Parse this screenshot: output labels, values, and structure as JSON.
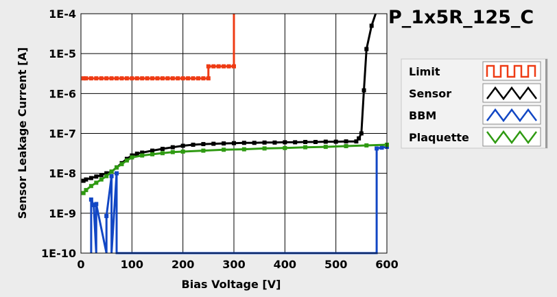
{
  "chart_data": {
    "type": "line",
    "title": "P_1x5R_125_C",
    "xlabel": "Bias Voltage [V]",
    "ylabel": "Sensor Leakage Current [A]",
    "xlim": [
      0,
      600
    ],
    "ylim": [
      1e-10,
      0.0001
    ],
    "y_scale": "log",
    "grid": true,
    "legend_position": "right",
    "x_ticks": [
      "0",
      "100",
      "200",
      "300",
      "400",
      "500",
      "600"
    ],
    "y_ticks": [
      "1E-10",
      "1E-9",
      "1E-8",
      "1E-7",
      "1E-6",
      "1E-5",
      "1E-4"
    ],
    "colors": {
      "Limit": "#ee3b14",
      "Sensor": "#000000",
      "BBM": "#1247c4",
      "Plaquette": "#2f9a12"
    },
    "series": [
      {
        "name": "Limit",
        "x": [
          5,
          10,
          20,
          30,
          40,
          50,
          60,
          70,
          80,
          90,
          100,
          110,
          120,
          130,
          140,
          150,
          160,
          170,
          180,
          190,
          200,
          210,
          220,
          230,
          240,
          250,
          250,
          260,
          270,
          280,
          290,
          300,
          300
        ],
        "y": [
          2.4e-06,
          2.4e-06,
          2.4e-06,
          2.4e-06,
          2.4e-06,
          2.4e-06,
          2.4e-06,
          2.4e-06,
          2.4e-06,
          2.4e-06,
          2.4e-06,
          2.4e-06,
          2.4e-06,
          2.4e-06,
          2.4e-06,
          2.4e-06,
          2.4e-06,
          2.4e-06,
          2.4e-06,
          2.4e-06,
          2.4e-06,
          2.4e-06,
          2.4e-06,
          2.4e-06,
          2.4e-06,
          2.4e-06,
          4.8e-06,
          4.8e-06,
          4.8e-06,
          4.8e-06,
          4.8e-06,
          4.8e-06,
          0.0001
        ]
      },
      {
        "name": "Sensor",
        "x": [
          5,
          10,
          20,
          30,
          40,
          50,
          60,
          70,
          80,
          90,
          100,
          110,
          120,
          140,
          160,
          180,
          200,
          220,
          240,
          260,
          280,
          300,
          320,
          340,
          360,
          380,
          400,
          420,
          440,
          460,
          480,
          500,
          520,
          540,
          545,
          550,
          555,
          560,
          570,
          578
        ],
        "y": [
          6.5e-09,
          7e-09,
          7.6e-09,
          8.3e-09,
          9e-09,
          1e-08,
          1.1e-08,
          1.4e-08,
          1.8e-08,
          2.3e-08,
          2.8e-08,
          3.1e-08,
          3.3e-08,
          3.7e-08,
          4.1e-08,
          4.5e-08,
          4.9e-08,
          5.2e-08,
          5.4e-08,
          5.5e-08,
          5.6e-08,
          5.7e-08,
          5.8e-08,
          5.8e-08,
          5.9e-08,
          5.9e-08,
          6e-08,
          6e-08,
          6.1e-08,
          6.1e-08,
          6.2e-08,
          6.2e-08,
          6.3e-08,
          6.3e-08,
          7.5e-08,
          1e-07,
          1.2e-06,
          1.3e-05,
          5e-05,
          0.0001
        ]
      },
      {
        "name": "BBM",
        "x": [
          20,
          20,
          25,
          30,
          30,
          50,
          50,
          60,
          60,
          70,
          70,
          580,
          580,
          590,
          600
        ],
        "y": [
          1e-10,
          2.2e-09,
          1.6e-09,
          1e-10,
          1.7e-09,
          1e-10,
          8.5e-10,
          8.5e-09,
          1e-10,
          1e-08,
          1e-10,
          1e-10,
          4.2e-08,
          4.4e-08,
          4.6e-08
        ]
      },
      {
        "name": "Plaquette",
        "x": [
          5,
          10,
          20,
          30,
          40,
          50,
          60,
          70,
          80,
          90,
          100,
          120,
          140,
          160,
          180,
          200,
          240,
          280,
          320,
          360,
          400,
          440,
          480,
          520,
          560,
          600
        ],
        "y": [
          3.2e-09,
          3.8e-09,
          4.8e-09,
          5.8e-09,
          7e-09,
          8.5e-09,
          1.1e-08,
          1.4e-08,
          1.7e-08,
          2.1e-08,
          2.5e-08,
          2.8e-08,
          3e-08,
          3.2e-08,
          3.4e-08,
          3.5e-08,
          3.7e-08,
          3.9e-08,
          4e-08,
          4.2e-08,
          4.3e-08,
          4.5e-08,
          4.6e-08,
          4.8e-08,
          5e-08,
          5.2e-08
        ]
      }
    ]
  }
}
